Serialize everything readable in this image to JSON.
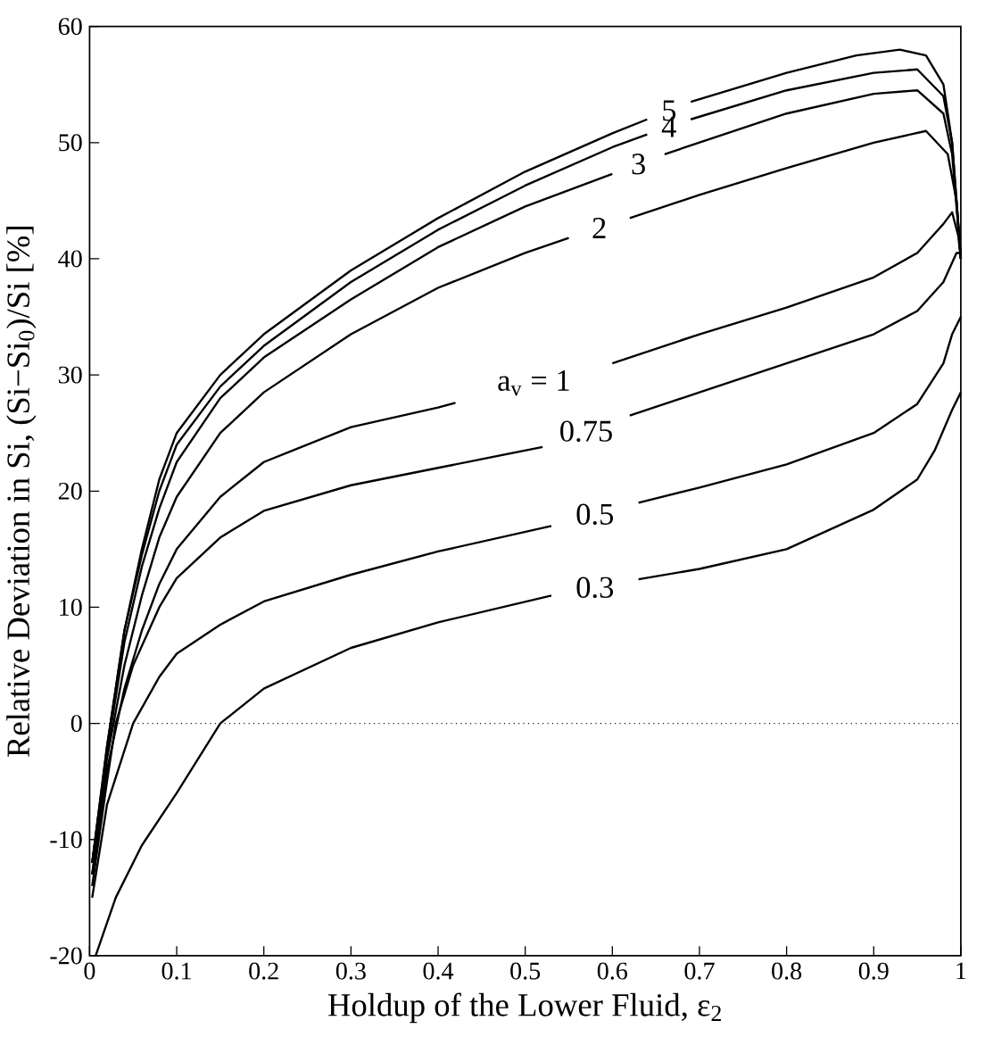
{
  "chart_data": {
    "type": "line",
    "xlabel": "Holdup of the Lower Fluid, ε$_{2}$",
    "ylabel": "Relative Deviation in Si, (Si−Si$_{0}$)/Si [%]",
    "xlim": [
      0,
      1
    ],
    "ylim": [
      -20,
      60
    ],
    "xticks": [
      0,
      0.1,
      0.2,
      0.3,
      0.4,
      0.5,
      0.6,
      0.7,
      0.8,
      0.9,
      1
    ],
    "yticks": [
      -20,
      -10,
      0,
      10,
      20,
      30,
      40,
      50,
      60
    ],
    "grid": false,
    "ref_lines": [
      {
        "axis": "y",
        "value": 0,
        "line_style": "dotted",
        "color": "#000000"
      }
    ],
    "series": [
      {
        "name": "5",
        "color": "#000000",
        "x": [
          0.003,
          0.02,
          0.04,
          0.06,
          0.08,
          0.1,
          0.15,
          0.2,
          0.3,
          0.4,
          0.5,
          0.6,
          0.64,
          0.665,
          0.69,
          0.8,
          0.88,
          0.93,
          0.96,
          0.98,
          0.99,
          1.0
        ],
        "values": [
          -12,
          -2,
          8,
          15,
          21,
          25,
          30,
          33.5,
          39,
          43.5,
          47.5,
          50.8,
          52,
          null,
          53.5,
          56,
          57.5,
          58,
          57.5,
          55,
          50,
          40
        ]
      },
      {
        "name": "4",
        "color": "#000000",
        "x": [
          0.003,
          0.02,
          0.04,
          0.06,
          0.08,
          0.1,
          0.15,
          0.2,
          0.3,
          0.4,
          0.5,
          0.6,
          0.64,
          0.665,
          0.69,
          0.8,
          0.9,
          0.95,
          0.98,
          0.99,
          1.0
        ],
        "values": [
          -12,
          -2,
          8,
          14.5,
          20,
          24,
          29,
          32.5,
          38,
          42.5,
          46.3,
          49.6,
          50.7,
          null,
          52,
          54.5,
          56,
          56.3,
          54,
          50,
          40
        ]
      },
      {
        "name": "3",
        "color": "#000000",
        "x": [
          0.003,
          0.02,
          0.04,
          0.06,
          0.08,
          0.1,
          0.15,
          0.2,
          0.3,
          0.4,
          0.5,
          0.6,
          0.63,
          0.66,
          0.8,
          0.9,
          0.95,
          0.98,
          0.99,
          1.0
        ],
        "values": [
          -12,
          -2.5,
          7,
          13.5,
          18.5,
          22.5,
          28,
          31.5,
          36.5,
          41,
          44.5,
          47.3,
          null,
          49,
          52.5,
          54.2,
          54.5,
          52.5,
          49,
          40
        ]
      },
      {
        "name": "2",
        "color": "#000000",
        "x": [
          0.003,
          0.02,
          0.04,
          0.06,
          0.08,
          0.1,
          0.15,
          0.2,
          0.3,
          0.4,
          0.5,
          0.55,
          0.585,
          0.62,
          0.7,
          0.8,
          0.9,
          0.96,
          0.985,
          0.995,
          1.0
        ],
        "values": [
          -13,
          -3,
          5,
          11,
          16,
          19.5,
          25,
          28.5,
          33.5,
          37.5,
          40.5,
          41.8,
          null,
          43.5,
          45.5,
          47.8,
          50,
          51,
          49,
          45,
          40
        ]
      },
      {
        "name": "a$_{v}$ = 1",
        "color": "#000000",
        "x": [
          0.003,
          0.02,
          0.04,
          0.06,
          0.08,
          0.1,
          0.15,
          0.2,
          0.3,
          0.4,
          0.42,
          0.51,
          0.6,
          0.7,
          0.8,
          0.9,
          0.95,
          0.98,
          0.99,
          0.997,
          1.0
        ],
        "values": [
          -13,
          -4,
          3,
          8,
          12,
          15,
          19.5,
          22.5,
          25.5,
          27.2,
          27.6,
          null,
          31,
          33.5,
          35.8,
          38.4,
          40.5,
          43,
          44,
          42,
          40
        ]
      },
      {
        "name": "0.75",
        "color": "#000000",
        "x": [
          0.003,
          0.02,
          0.03,
          0.05,
          0.08,
          0.1,
          0.15,
          0.2,
          0.3,
          0.4,
          0.52,
          0.57,
          0.62,
          0.7,
          0.8,
          0.9,
          0.95,
          0.98,
          0.995,
          1.0
        ],
        "values": [
          -14,
          -5,
          0,
          5,
          10,
          12.5,
          16,
          18.3,
          20.5,
          22,
          23.8,
          null,
          26.5,
          28.5,
          31,
          33.5,
          35.5,
          38,
          40.5,
          40.5
        ]
      },
      {
        "name": "0.5",
        "color": "#000000",
        "x": [
          0.003,
          0.02,
          0.05,
          0.08,
          0.1,
          0.15,
          0.2,
          0.3,
          0.4,
          0.53,
          0.58,
          0.63,
          0.7,
          0.8,
          0.9,
          0.95,
          0.98,
          0.99,
          1.0
        ],
        "values": [
          -15,
          -7,
          0,
          4,
          6,
          8.5,
          10.5,
          12.8,
          14.8,
          17,
          null,
          19,
          20.3,
          22.3,
          25,
          27.5,
          31,
          33.5,
          35
        ]
      },
      {
        "name": "0.3",
        "color": "#000000",
        "x": [
          0.007,
          0.03,
          0.06,
          0.1,
          0.15,
          0.2,
          0.3,
          0.4,
          0.53,
          0.58,
          0.63,
          0.7,
          0.8,
          0.9,
          0.95,
          0.97,
          0.99,
          1.0
        ],
        "values": [
          -20,
          -15,
          -10.5,
          -6,
          0,
          3,
          6.5,
          8.7,
          11,
          null,
          12.4,
          13.3,
          15,
          18.4,
          21,
          23.5,
          27,
          28.5
        ]
      }
    ]
  }
}
